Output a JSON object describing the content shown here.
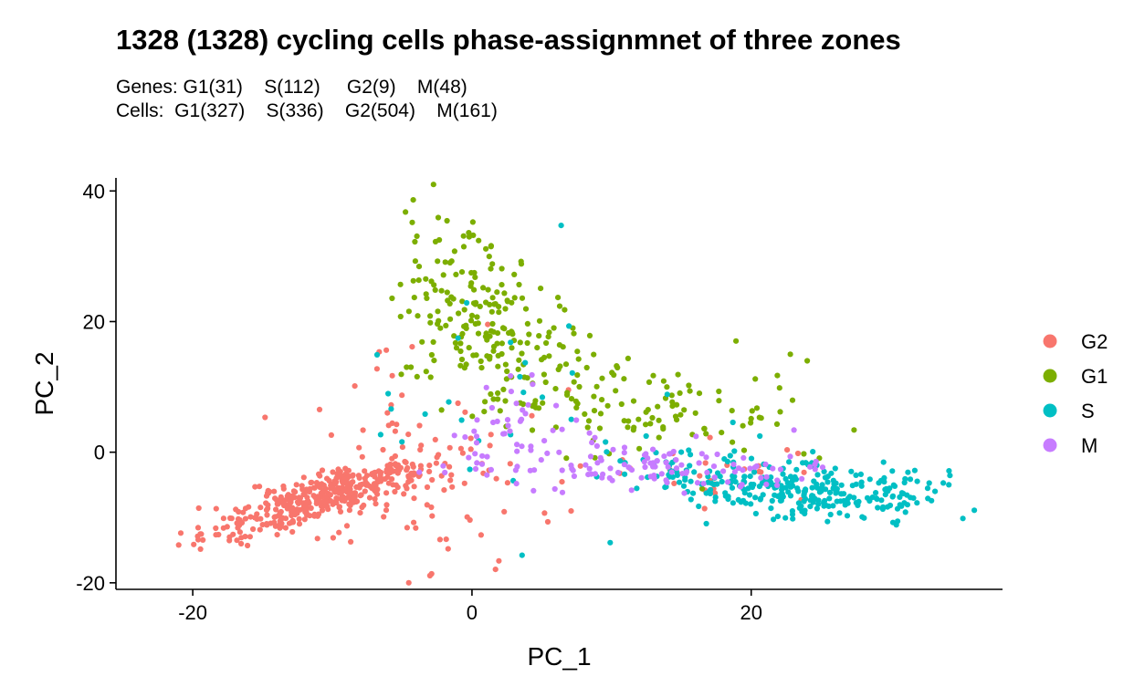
{
  "title": "1328 (1328) cycling cells phase-assignmnet of three zones",
  "subtitle_genes": "Genes: G1(31)    S(112)     G2(9)    M(48)",
  "subtitle_cells": "Cells:  G1(327)    S(336)    G2(504)    M(161)",
  "chart_data": {
    "type": "scatter",
    "title": "1328 (1328) cycling cells phase-assignmnet of three zones",
    "xlabel": "PC_1",
    "ylabel": "PC_2",
    "xlim": [
      -25.5,
      38
    ],
    "ylim": [
      -21,
      42
    ],
    "x_ticks": [
      -20,
      0,
      20
    ],
    "y_ticks": [
      -20,
      0,
      20,
      40
    ],
    "grid": false,
    "legend_position": "right",
    "series": [
      {
        "name": "G2",
        "color": "#F8766D",
        "clusters": [
          {
            "cx": -11,
            "cy": -7,
            "sx": 4,
            "sy": 3.2,
            "n": 390,
            "corr": 0.82
          },
          {
            "cx": -2,
            "cy": -5,
            "sx": 4.5,
            "sy": 7,
            "n": 70,
            "corr": 0.0
          },
          {
            "cx": 17,
            "cy": -4,
            "sx": 3.5,
            "sy": 2.5,
            "n": 25,
            "corr": 0.0
          },
          {
            "cx": -7,
            "cy": 5,
            "sx": 3,
            "sy": 8,
            "n": 19,
            "corr": 0.0
          }
        ]
      },
      {
        "name": "G1",
        "color": "#7CAE00",
        "clusters": [
          {
            "cx": 0,
            "cy": 22,
            "sx": 2.5,
            "sy": 7,
            "n": 160,
            "corr": -0.3
          },
          {
            "cx": 6,
            "cy": 13,
            "sx": 5,
            "sy": 5,
            "n": 90,
            "corr": -0.4
          },
          {
            "cx": 16,
            "cy": 6,
            "sx": 5,
            "sy": 4,
            "n": 77,
            "corr": 0.0
          }
        ]
      },
      {
        "name": "S",
        "color": "#00BFC4",
        "clusters": [
          {
            "cx": 24,
            "cy": -6,
            "sx": 5,
            "sy": 2.2,
            "n": 280,
            "corr": -0.3
          },
          {
            "cx": 15,
            "cy": -2,
            "sx": 4,
            "sy": 2.5,
            "n": 30,
            "corr": 0.0
          },
          {
            "cx": 2,
            "cy": 8,
            "sx": 5,
            "sy": 10,
            "n": 26,
            "corr": 0.0
          }
        ]
      },
      {
        "name": "M",
        "color": "#C77CFF",
        "clusters": [
          {
            "cx": 12,
            "cy": -2,
            "sx": 6,
            "sy": 2,
            "n": 100,
            "corr": 0.0
          },
          {
            "cx": 3,
            "cy": 4,
            "sx": 2.5,
            "sy": 4,
            "n": 40,
            "corr": 0.0
          },
          {
            "cx": 21,
            "cy": -3,
            "sx": 2.5,
            "sy": 1.5,
            "n": 21,
            "corr": 0.0
          }
        ]
      }
    ]
  }
}
